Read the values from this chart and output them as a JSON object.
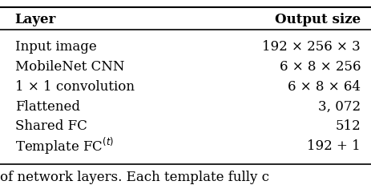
{
  "headers": [
    "Layer",
    "Output size"
  ],
  "rows": [
    [
      "Input image",
      "192 × 256 × 3"
    ],
    [
      "MobileNet CNN",
      "6 × 8 × 256"
    ],
    [
      "1 × 1 convolution",
      "6 × 8 × 64"
    ],
    [
      "Flattened",
      "3, 072"
    ],
    [
      "Shared FC",
      "512"
    ],
    [
      "Template FC",
      "192 + 1"
    ]
  ],
  "footer_text": "of network layers. Each template fully c",
  "bg_color": "#ffffff",
  "text_color": "#000000",
  "header_fontsize": 12,
  "row_fontsize": 12,
  "footer_fontsize": 12
}
